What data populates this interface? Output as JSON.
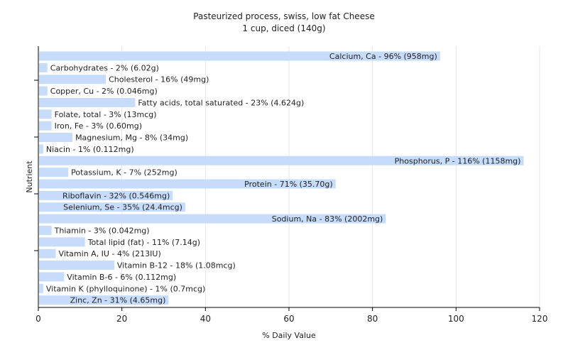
{
  "chart_data": {
    "type": "bar",
    "orientation": "horizontal",
    "title": "Pasteurized process, swiss, low fat Cheese",
    "subtitle": "1 cup, diced (140g)",
    "xlabel": "% Daily Value",
    "ylabel": "Nutrient",
    "xlim": [
      0,
      120
    ],
    "xticks": [
      "0",
      "20",
      "40",
      "60",
      "80",
      "100",
      "120"
    ],
    "grid": true,
    "bar_color": "#c6dcfa",
    "bars": [
      {
        "name": "Calcium, Ca",
        "value": 96,
        "label": "Calcium, Ca - 96% (958mg)"
      },
      {
        "name": "Carbohydrates",
        "value": 2,
        "label": "Carbohydrates - 2% (6.02g)"
      },
      {
        "name": "Cholesterol",
        "value": 16,
        "label": "Cholesterol - 16% (49mg)"
      },
      {
        "name": "Copper, Cu",
        "value": 2,
        "label": "Copper, Cu - 2% (0.046mg)"
      },
      {
        "name": "Fatty acids, total saturated",
        "value": 23,
        "label": "Fatty acids, total saturated - 23% (4.624g)"
      },
      {
        "name": "Folate, total",
        "value": 3,
        "label": "Folate, total - 3% (13mcg)"
      },
      {
        "name": "Iron, Fe",
        "value": 3,
        "label": "Iron, Fe - 3% (0.60mg)"
      },
      {
        "name": "Magnesium, Mg",
        "value": 8,
        "label": "Magnesium, Mg - 8% (34mg)"
      },
      {
        "name": "Niacin",
        "value": 1,
        "label": "Niacin - 1% (0.112mg)"
      },
      {
        "name": "Phosphorus, P",
        "value": 116,
        "label": "Phosphorus, P - 116% (1158mg)"
      },
      {
        "name": "Potassium, K",
        "value": 7,
        "label": "Potassium, K - 7% (252mg)"
      },
      {
        "name": "Protein",
        "value": 71,
        "label": "Protein - 71% (35.70g)"
      },
      {
        "name": "Riboflavin",
        "value": 32,
        "label": "Riboflavin - 32% (0.546mg)"
      },
      {
        "name": "Selenium, Se",
        "value": 35,
        "label": "Selenium, Se - 35% (24.4mcg)"
      },
      {
        "name": "Sodium, Na",
        "value": 83,
        "label": "Sodium, Na - 83% (2002mg)"
      },
      {
        "name": "Thiamin",
        "value": 3,
        "label": "Thiamin - 3% (0.042mg)"
      },
      {
        "name": "Total lipid (fat)",
        "value": 11,
        "label": "Total lipid (fat) - 11% (7.14g)"
      },
      {
        "name": "Vitamin A, IU",
        "value": 4,
        "label": "Vitamin A, IU - 4% (213IU)"
      },
      {
        "name": "Vitamin B-12",
        "value": 18,
        "label": "Vitamin B-12 - 18% (1.08mcg)"
      },
      {
        "name": "Vitamin B-6",
        "value": 6,
        "label": "Vitamin B-6 - 6% (0.112mg)"
      },
      {
        "name": "Vitamin K (phylloquinone)",
        "value": 1,
        "label": "Vitamin K (phylloquinone) - 1% (0.7mcg)"
      },
      {
        "name": "Zinc, Zn",
        "value": 31,
        "label": "Zinc, Zn - 31% (4.65mg)"
      }
    ]
  }
}
